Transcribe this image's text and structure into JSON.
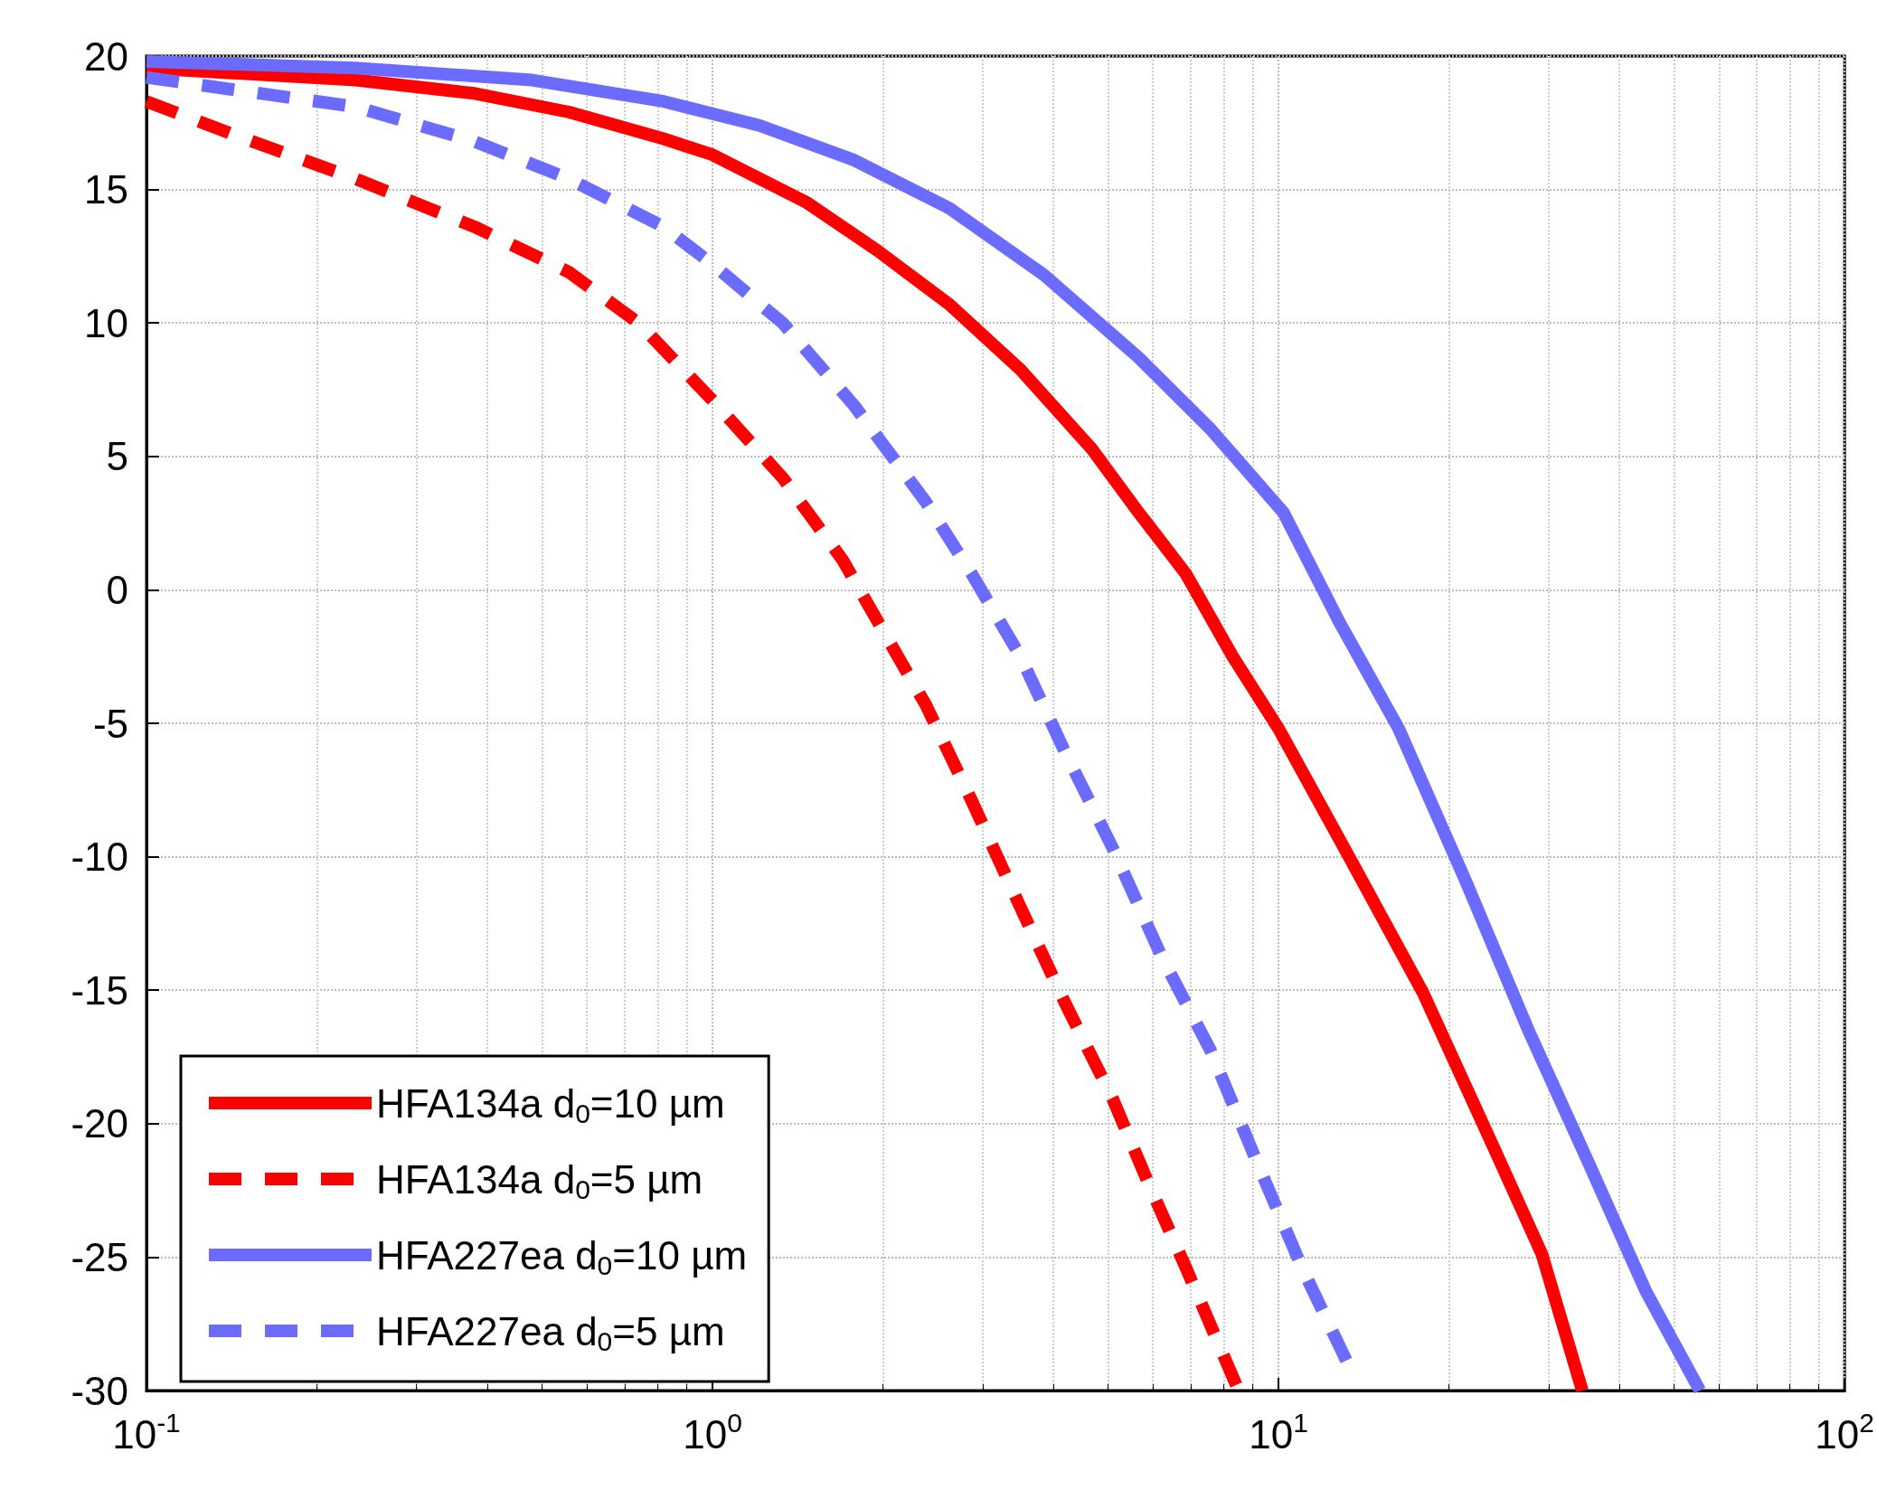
{
  "chart_data": {
    "type": "line",
    "log": "x",
    "grid": true,
    "legend": "bottom left",
    "xlim": [
      0.1,
      100
    ],
    "ylim": [
      -30,
      20
    ],
    "xticks": [
      {
        "value": 0.1,
        "label": "10$^{-1}$"
      },
      {
        "value": 1,
        "label": "10$^{0}$"
      },
      {
        "value": 10,
        "label": "10$^{1}$"
      },
      {
        "value": 100,
        "label": "10$^{2}$"
      }
    ],
    "yticks": [
      -30,
      -25,
      -20,
      -15,
      -10,
      -5,
      0,
      5,
      10,
      15,
      20
    ],
    "series": [
      {
        "name": "HFA134a d$_{0}$=10 µm",
        "color": "#ff0000",
        "line_style": "solid",
        "x": [
          0.1,
          0.234,
          0.38,
          0.558,
          0.82,
          1,
          1.47,
          1.96,
          2.62,
          3.5,
          4.67,
          5.66,
          6.86,
          8.3,
          10,
          13.4,
          18,
          24,
          29.2,
          34.4
        ],
        "values": [
          19.55,
          19.1,
          18.6,
          17.9,
          16.9,
          16.3,
          14.5,
          12.7,
          10.7,
          8.25,
          5.3,
          2.9,
          0.6,
          -2.5,
          -5.2,
          -10.1,
          -15.1,
          -20.9,
          -24.9,
          -30
        ]
      },
      {
        "name": "HFA134a d$_{0}$=5 µm",
        "color": "#ff0000",
        "line_style": "dashed",
        "x": [
          0.1,
          0.145,
          0.234,
          0.38,
          0.558,
          0.74,
          1,
          1.33,
          1.7,
          1.96,
          2.38,
          2.87,
          3.5,
          4.2,
          5.1,
          5.88,
          6.86,
          8.5
        ],
        "values": [
          18.3,
          17,
          15.4,
          13.6,
          11.9,
          10,
          7.1,
          4.2,
          1.1,
          -1.2,
          -4.3,
          -7.9,
          -11.9,
          -15.5,
          -19.1,
          -22.2,
          -25.4,
          -30
        ]
      },
      {
        "name": "HFA227ea d$_{0}$=10 µm",
        "color": "#6b6bff",
        "line_style": "solid",
        "x": [
          0.1,
          0.234,
          0.48,
          0.82,
          1.21,
          1.78,
          2.62,
          3.85,
          5.66,
          7.6,
          10.2,
          12.8,
          16.3,
          21.5,
          27.5,
          35,
          44.6,
          55.5
        ],
        "values": [
          19.8,
          19.55,
          19.1,
          18.3,
          17.4,
          16.1,
          14.3,
          11.8,
          8.7,
          6,
          2.9,
          -1.2,
          -5.2,
          -11,
          -16.4,
          -21.3,
          -26.3,
          -30
        ]
      },
      {
        "name": "HFA227ea d$_{0}$=5 µm",
        "color": "#6b6bff",
        "line_style": "dashed",
        "x": [
          0.1,
          0.234,
          0.38,
          0.558,
          0.82,
          1,
          1.33,
          1.78,
          2.38,
          2.87,
          3.5,
          4.2,
          5.1,
          6.2,
          7.6,
          9.1,
          11,
          13.4
        ],
        "values": [
          19.2,
          18.1,
          16.8,
          15.4,
          13.6,
          12.2,
          10,
          6.9,
          3.3,
          0.6,
          -2.5,
          -6.1,
          -9.7,
          -13.7,
          -17.3,
          -21.3,
          -25.4,
          -29.2
        ]
      }
    ]
  }
}
